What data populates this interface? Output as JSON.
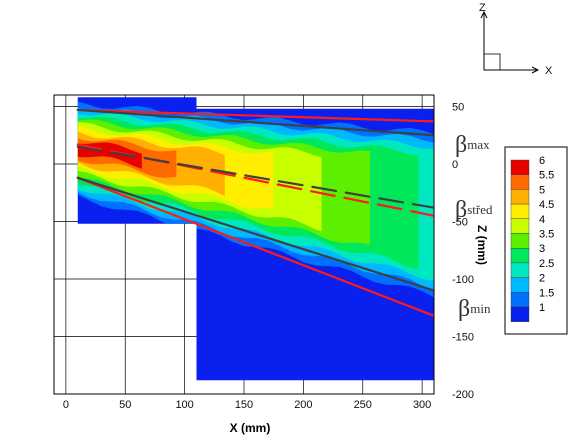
{
  "chart_data": {
    "type": "heatmap",
    "xlabel": "X (mm)",
    "ylabel": "Z (mm)",
    "xlim": [
      -10,
      310
    ],
    "ylim": [
      -200,
      60
    ],
    "x_ticks": [
      0,
      50,
      100,
      150,
      200,
      250,
      300
    ],
    "y_ticks": [
      50,
      0,
      -50,
      -100,
      -150,
      -200
    ],
    "grid": true,
    "axes_triad": {
      "vertical": "Z",
      "horizontal": "X"
    },
    "colorbar": {
      "levels": [
        "6",
        "5.5",
        "5",
        "4.5",
        "4",
        "3.5",
        "3",
        "2.5",
        "2",
        "1.5",
        "1"
      ],
      "colors": [
        "#e60000",
        "#ff6a00",
        "#ffb000",
        "#ffee00",
        "#c8ff00",
        "#5cf000",
        "#00e85a",
        "#00e8c0",
        "#00b8ff",
        "#0070ff",
        "#0a20ee"
      ]
    },
    "colored_region": [
      {
        "x_from": 10,
        "x_to": 110,
        "z_from": -52,
        "z_to": 58
      },
      {
        "x_from": 110,
        "x_to": 310,
        "z_from": -188,
        "z_to": 48
      }
    ],
    "lines": [
      {
        "name": "β_max (measured)",
        "color": "#ff1a1a",
        "style": "solid",
        "points": [
          [
            10,
            47
          ],
          [
            310,
            37
          ]
        ]
      },
      {
        "name": "β_max (fit)",
        "color": "#404040",
        "style": "solid",
        "points": [
          [
            10,
            47
          ],
          [
            310,
            25
          ]
        ]
      },
      {
        "name": "β_střed (measured)",
        "color": "#ff1a1a",
        "style": "dashed",
        "points": [
          [
            10,
            17
          ],
          [
            310,
            -45
          ]
        ]
      },
      {
        "name": "β_střed (fit)",
        "color": "#404040",
        "style": "dashed",
        "points": [
          [
            10,
            15
          ],
          [
            310,
            -38
          ]
        ]
      },
      {
        "name": "β_min (measured)",
        "color": "#ff1a1a",
        "style": "solid",
        "points": [
          [
            10,
            -12
          ],
          [
            310,
            -132
          ]
        ]
      },
      {
        "name": "β_min (fit)",
        "color": "#404040",
        "style": "solid",
        "points": [
          [
            10,
            -12
          ],
          [
            310,
            -110
          ]
        ]
      }
    ],
    "annotations": [
      {
        "symbol": "β",
        "subscript": "max"
      },
      {
        "symbol": "β",
        "subscript": "střed"
      },
      {
        "symbol": "β",
        "subscript": "min"
      }
    ]
  }
}
